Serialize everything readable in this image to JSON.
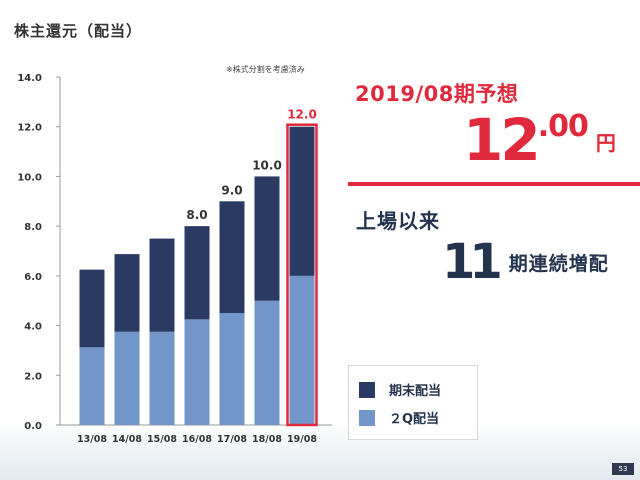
{
  "page": {
    "title": "株主還元（配当）",
    "note": "※株式分割を考慮済み",
    "forecast_label": "2019/08期予想",
    "forecast_integer": "12",
    "forecast_decimal": ".00",
    "forecast_unit": "円",
    "since_listing": "上場以来",
    "streak_count": "11",
    "streak_label": "期連続増配",
    "page_number": "53",
    "colors": {
      "year_end": "#2a3a62",
      "interim": "#7296c9",
      "accent": "#e0293c",
      "text_dark": "#24344f"
    }
  },
  "chart_data": {
    "type": "bar",
    "stacked": true,
    "categories": [
      "13/08",
      "14/08",
      "15/08",
      "16/08",
      "17/08",
      "18/08",
      "19/08"
    ],
    "series": [
      {
        "name": "２Q配当",
        "values": [
          3.125,
          3.75,
          3.75,
          4.25,
          4.5,
          5.0,
          6.0
        ]
      },
      {
        "name": "期末配当",
        "values": [
          3.125,
          3.125,
          3.75,
          3.75,
          4.5,
          5.0,
          6.0
        ]
      }
    ],
    "totals_labels": [
      "",
      "",
      "",
      "8.0",
      "9.0",
      "10.0",
      "12.0"
    ],
    "highlight_category": "19/08",
    "yticks": [
      "0.0",
      "2.0",
      "4.0",
      "6.0",
      "8.0",
      "10.0",
      "12.0",
      "14.0"
    ],
    "ylim": [
      0,
      14
    ],
    "legend": [
      "期末配当",
      "２Q配当"
    ],
    "legend_position": "bottom-right",
    "grid": false
  }
}
